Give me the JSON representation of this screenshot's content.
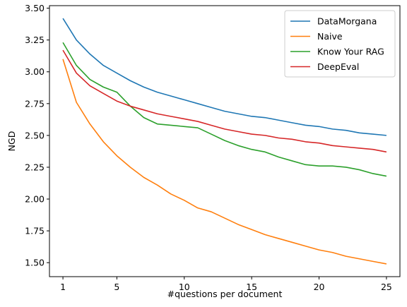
{
  "chart_data": {
    "type": "line",
    "xlabel": "#questions per document",
    "ylabel": "NGD",
    "xlim": [
      0,
      26
    ],
    "ylim": [
      1.39,
      3.52
    ],
    "xticks": [
      1,
      5,
      10,
      15,
      20,
      25
    ],
    "yticks": [
      1.5,
      1.75,
      2.0,
      2.25,
      2.5,
      2.75,
      3.0,
      3.25,
      3.5
    ],
    "ytick_labels": [
      "1.50",
      "1.75",
      "2.00",
      "2.25",
      "2.50",
      "2.75",
      "3.00",
      "3.25",
      "3.50"
    ],
    "grid": false,
    "legend_position": "top-right",
    "x": [
      1,
      2,
      3,
      4,
      5,
      6,
      7,
      8,
      9,
      10,
      11,
      12,
      13,
      14,
      15,
      16,
      17,
      18,
      19,
      20,
      21,
      22,
      23,
      24,
      25
    ],
    "series": [
      {
        "name": "DataMorgana",
        "color": "#1f77b4",
        "values": [
          3.42,
          3.25,
          3.14,
          3.05,
          2.99,
          2.93,
          2.88,
          2.84,
          2.81,
          2.78,
          2.75,
          2.72,
          2.69,
          2.67,
          2.65,
          2.64,
          2.62,
          2.6,
          2.58,
          2.57,
          2.55,
          2.54,
          2.52,
          2.51,
          2.5
        ]
      },
      {
        "name": "Naive",
        "color": "#ff7f0e",
        "values": [
          3.1,
          2.76,
          2.59,
          2.45,
          2.34,
          2.25,
          2.17,
          2.11,
          2.04,
          1.99,
          1.93,
          1.9,
          1.85,
          1.8,
          1.76,
          1.72,
          1.69,
          1.66,
          1.63,
          1.6,
          1.58,
          1.55,
          1.53,
          1.51,
          1.49
        ]
      },
      {
        "name": "Know Your RAG",
        "color": "#2ca02c",
        "values": [
          3.23,
          3.05,
          2.94,
          2.88,
          2.84,
          2.73,
          2.64,
          2.59,
          2.58,
          2.57,
          2.56,
          2.51,
          2.46,
          2.42,
          2.39,
          2.37,
          2.33,
          2.3,
          2.27,
          2.26,
          2.26,
          2.25,
          2.23,
          2.2,
          2.18
        ]
      },
      {
        "name": "DeepEval",
        "color": "#d62728",
        "values": [
          3.17,
          2.99,
          2.89,
          2.83,
          2.77,
          2.73,
          2.7,
          2.67,
          2.65,
          2.63,
          2.61,
          2.58,
          2.55,
          2.53,
          2.51,
          2.5,
          2.48,
          2.47,
          2.45,
          2.44,
          2.42,
          2.41,
          2.4,
          2.39,
          2.37
        ]
      }
    ]
  }
}
